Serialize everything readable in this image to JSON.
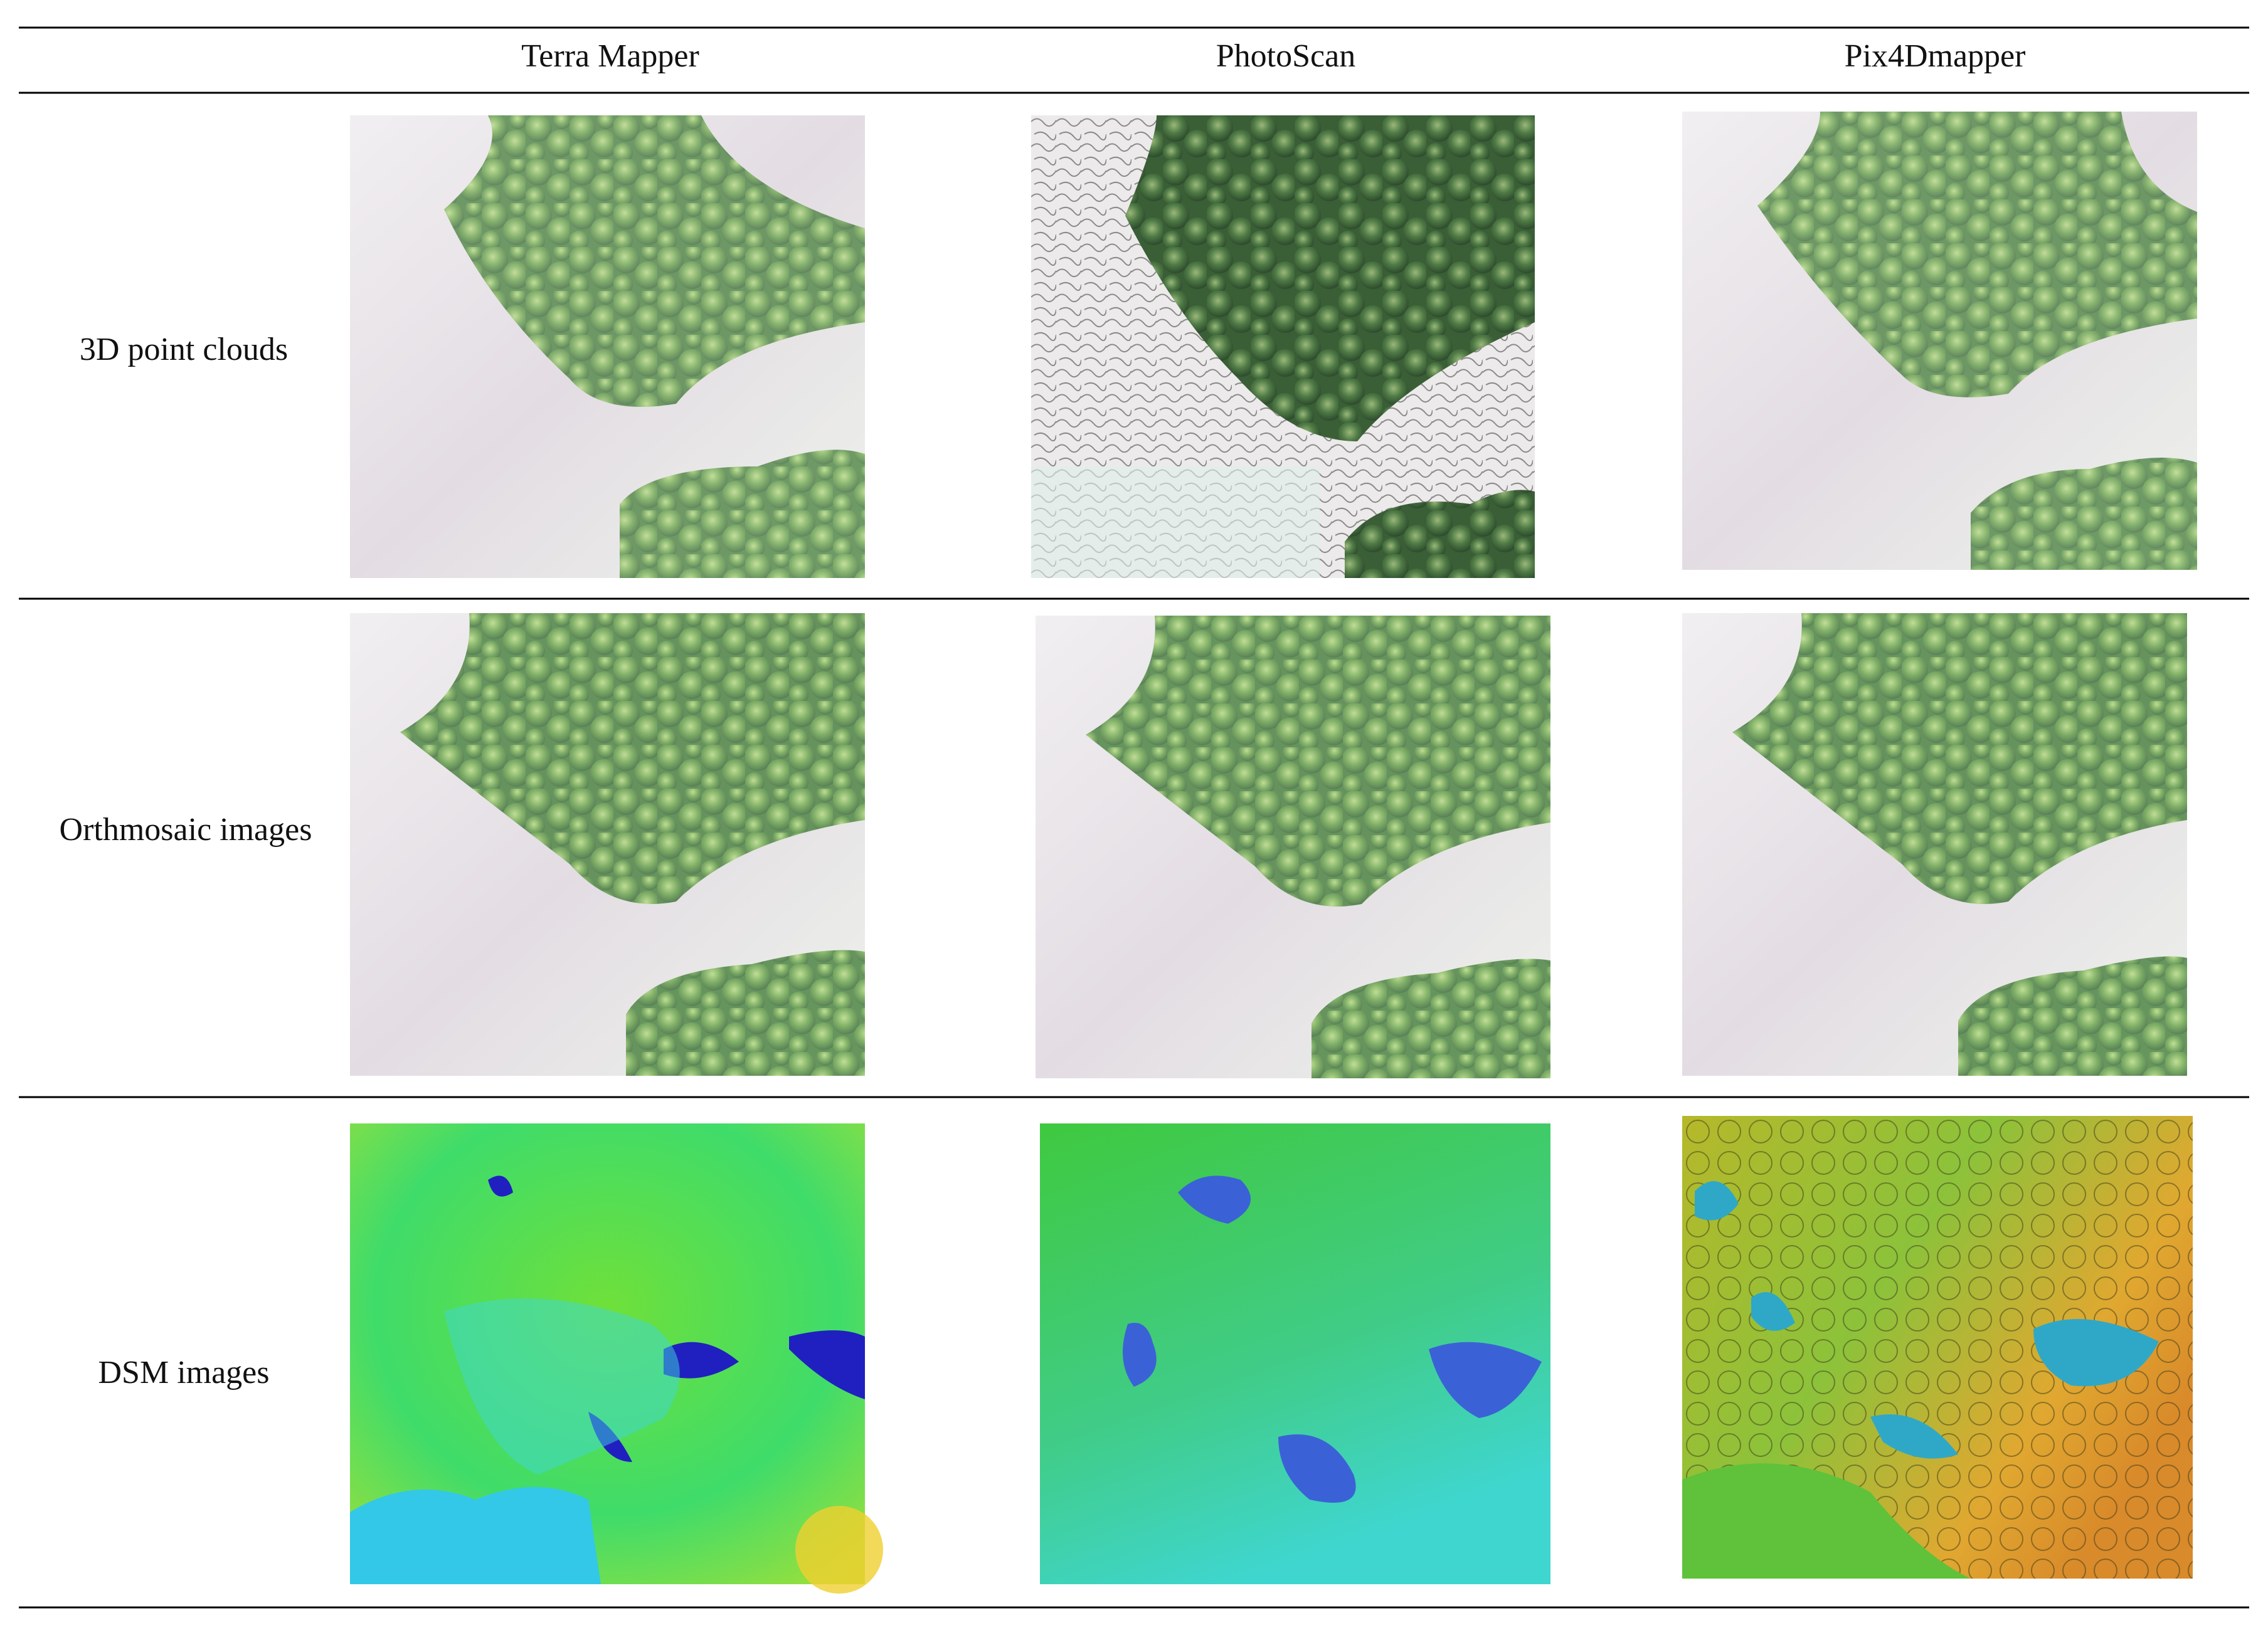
{
  "table": {
    "columns": [
      "Terra Mapper",
      "PhotoScan",
      "Pix4Dmapper"
    ],
    "rows": [
      {
        "label": "3D point clouds"
      },
      {
        "label": "Orthmosaic images"
      },
      {
        "label": "DSM images"
      }
    ]
  }
}
